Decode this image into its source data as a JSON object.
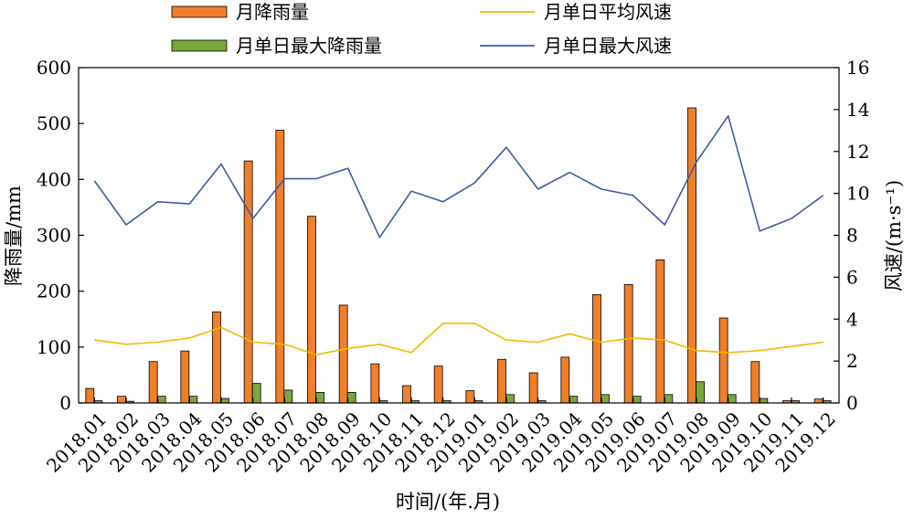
{
  "chart_data": {
    "type": "bar",
    "title": "",
    "xlabel": "时间/(年.月)",
    "ylabel_left": "降雨量/mm",
    "ylabel_right": "风速/(m·s⁻¹)",
    "ylim_left": [
      0,
      600
    ],
    "ylim_right": [
      0,
      16
    ],
    "yticks_left": [
      "0",
      "100",
      "200",
      "300",
      "400",
      "500",
      "600"
    ],
    "yticks_right": [
      "0",
      "2",
      "4",
      "6",
      "8",
      "10",
      "12",
      "14",
      "16"
    ],
    "grid": false,
    "legend_position": "top",
    "categories": [
      "2018.01",
      "2018.02",
      "2018.03",
      "2018.04",
      "2018.05",
      "2018.06",
      "2018.07",
      "2018.08",
      "2018.09",
      "2018.10",
      "2018.11",
      "2018.12",
      "2019.01",
      "2019.02",
      "2019.03",
      "2019.04",
      "2019.05",
      "2019.06",
      "2019.07",
      "2019.08",
      "2019.09",
      "2019.10",
      "2019.11",
      "2019.12"
    ],
    "series": [
      {
        "name": "月降雨量",
        "kind": "bar",
        "axis": "left",
        "color": "#f07f2a",
        "values": [
          26,
          12,
          74,
          93,
          163,
          433,
          488,
          334,
          175,
          70,
          31,
          66,
          22,
          78,
          54,
          82,
          194,
          212,
          256,
          528,
          152,
          74,
          4,
          7
        ]
      },
      {
        "name": "月单日最大降雨量",
        "kind": "bar",
        "axis": "left",
        "color": "#78a83a",
        "values": [
          4,
          3,
          12,
          12,
          8,
          35,
          23,
          19,
          19,
          4,
          4,
          4,
          4,
          15,
          4,
          12,
          15,
          12,
          15,
          38,
          15,
          8,
          4,
          4
        ]
      },
      {
        "name": "月单日平均风速",
        "kind": "line",
        "axis": "right",
        "color": "#f5b800",
        "values": [
          3.0,
          2.8,
          2.9,
          3.1,
          3.6,
          2.9,
          2.8,
          2.3,
          2.6,
          2.8,
          2.4,
          3.8,
          3.8,
          3.0,
          2.9,
          3.3,
          2.9,
          3.1,
          3.0,
          2.5,
          2.4,
          2.5,
          2.7,
          2.9
        ]
      },
      {
        "name": "月单日最大风速",
        "kind": "line",
        "axis": "right",
        "color": "#3b5ba8",
        "values": [
          10.6,
          8.5,
          9.6,
          9.5,
          11.4,
          8.8,
          10.7,
          10.7,
          11.2,
          7.9,
          10.1,
          9.6,
          10.5,
          12.2,
          10.2,
          11.0,
          10.2,
          9.9,
          8.5,
          11.5,
          13.7,
          8.2,
          8.8,
          9.9
        ]
      }
    ]
  }
}
